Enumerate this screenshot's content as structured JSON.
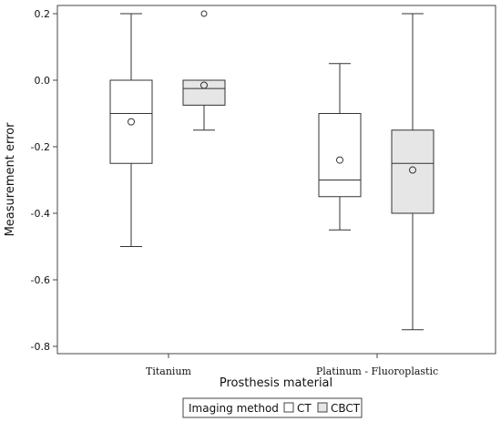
{
  "chart_data": {
    "type": "box",
    "title": "",
    "xlabel": "Prosthesis material",
    "ylabel": "Measurement error",
    "ylim": [
      -0.82,
      0.22
    ],
    "yticks": [
      0.2,
      0.0,
      -0.2,
      -0.4,
      -0.6,
      -0.8
    ],
    "ytick_labels": [
      "0.2",
      "0.0",
      "-0.2",
      "-0.4",
      "-0.6",
      "-0.8"
    ],
    "categories": [
      "Titanium",
      "Platinum - Fluoroplastic"
    ],
    "grid": false,
    "legend": {
      "title": "Imaging method",
      "position": "bottom"
    },
    "series": [
      {
        "name": "CT",
        "color": "#ffffff",
        "boxes": [
          {
            "whisker_low": -0.5,
            "q1": -0.25,
            "median": -0.1,
            "q3": 0.0,
            "whisker_high": 0.2,
            "mean": -0.125,
            "outliers": []
          },
          {
            "whisker_low": -0.45,
            "q1": -0.35,
            "median": -0.3,
            "q3": -0.1,
            "whisker_high": 0.05,
            "mean": -0.24,
            "outliers": []
          }
        ]
      },
      {
        "name": "CBCT",
        "color": "#e6e6e6",
        "boxes": [
          {
            "whisker_low": -0.15,
            "q1": -0.075,
            "median": -0.025,
            "q3": 0.0,
            "whisker_high": 0.0,
            "mean": -0.015,
            "outliers": [
              0.2
            ]
          },
          {
            "whisker_low": -0.75,
            "q1": -0.4,
            "median": -0.25,
            "q3": -0.15,
            "whisker_high": 0.2,
            "mean": -0.27,
            "outliers": []
          }
        ]
      }
    ]
  }
}
